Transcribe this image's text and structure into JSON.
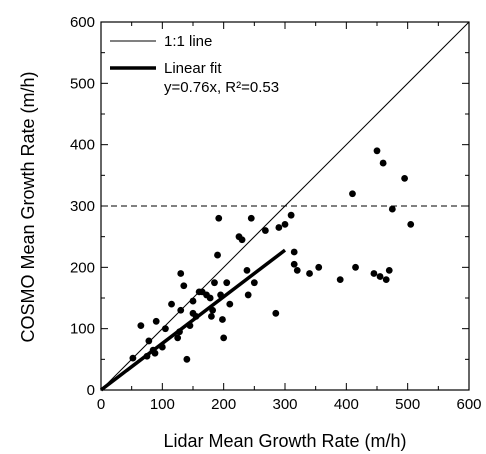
{
  "chart_data": {
    "type": "scatter",
    "xlabel": "Lidar Mean Growth Rate (m/h)",
    "ylabel": "COSMO Mean Growth Rate (m/h)",
    "xlim": [
      0,
      600
    ],
    "ylim": [
      0,
      600
    ],
    "xticks": [
      "0",
      "100",
      "200",
      "300",
      "400",
      "500",
      "600"
    ],
    "yticks": [
      "0",
      "100",
      "200",
      "300",
      "400",
      "500",
      "600"
    ],
    "grid": false,
    "legend_position": "top-left",
    "legend": [
      {
        "label": "1:1 line",
        "style": "thin-line"
      },
      {
        "label": "Linear fit",
        "label2": "y=0.76x, R²=0.53",
        "style": "thick-line"
      }
    ],
    "reference_lines": [
      {
        "kind": "1:1",
        "from": [
          0,
          0
        ],
        "to": [
          600,
          600
        ]
      },
      {
        "kind": "linear-fit",
        "slope": 0.76,
        "from": [
          0,
          0
        ],
        "to": [
          300,
          228
        ]
      },
      {
        "kind": "horizontal-dashed",
        "y": 300
      }
    ],
    "points": [
      [
        52,
        52
      ],
      [
        65,
        105
      ],
      [
        75,
        55
      ],
      [
        78,
        80
      ],
      [
        85,
        65
      ],
      [
        90,
        112
      ],
      [
        88,
        60
      ],
      [
        100,
        70
      ],
      [
        105,
        100
      ],
      [
        115,
        140
      ],
      [
        125,
        85
      ],
      [
        128,
        95
      ],
      [
        130,
        130
      ],
      [
        130,
        190
      ],
      [
        135,
        170
      ],
      [
        140,
        50
      ],
      [
        145,
        105
      ],
      [
        150,
        125
      ],
      [
        150,
        145
      ],
      [
        155,
        120
      ],
      [
        160,
        160
      ],
      [
        165,
        160
      ],
      [
        172,
        155
      ],
      [
        178,
        150
      ],
      [
        180,
        120
      ],
      [
        182,
        130
      ],
      [
        185,
        175
      ],
      [
        190,
        220
      ],
      [
        192,
        280
      ],
      [
        195,
        155
      ],
      [
        198,
        115
      ],
      [
        200,
        85
      ],
      [
        205,
        175
      ],
      [
        210,
        140
      ],
      [
        225,
        250
      ],
      [
        230,
        245
      ],
      [
        238,
        195
      ],
      [
        240,
        155
      ],
      [
        245,
        280
      ],
      [
        250,
        175
      ],
      [
        268,
        260
      ],
      [
        285,
        125
      ],
      [
        290,
        265
      ],
      [
        300,
        270
      ],
      [
        310,
        285
      ],
      [
        315,
        205
      ],
      [
        315,
        225
      ],
      [
        320,
        195
      ],
      [
        340,
        190
      ],
      [
        355,
        200
      ],
      [
        390,
        180
      ],
      [
        410,
        320
      ],
      [
        415,
        200
      ],
      [
        445,
        190
      ],
      [
        450,
        390
      ],
      [
        455,
        185
      ],
      [
        460,
        370
      ],
      [
        465,
        180
      ],
      [
        470,
        195
      ],
      [
        475,
        295
      ],
      [
        495,
        345
      ],
      [
        505,
        270
      ]
    ]
  }
}
